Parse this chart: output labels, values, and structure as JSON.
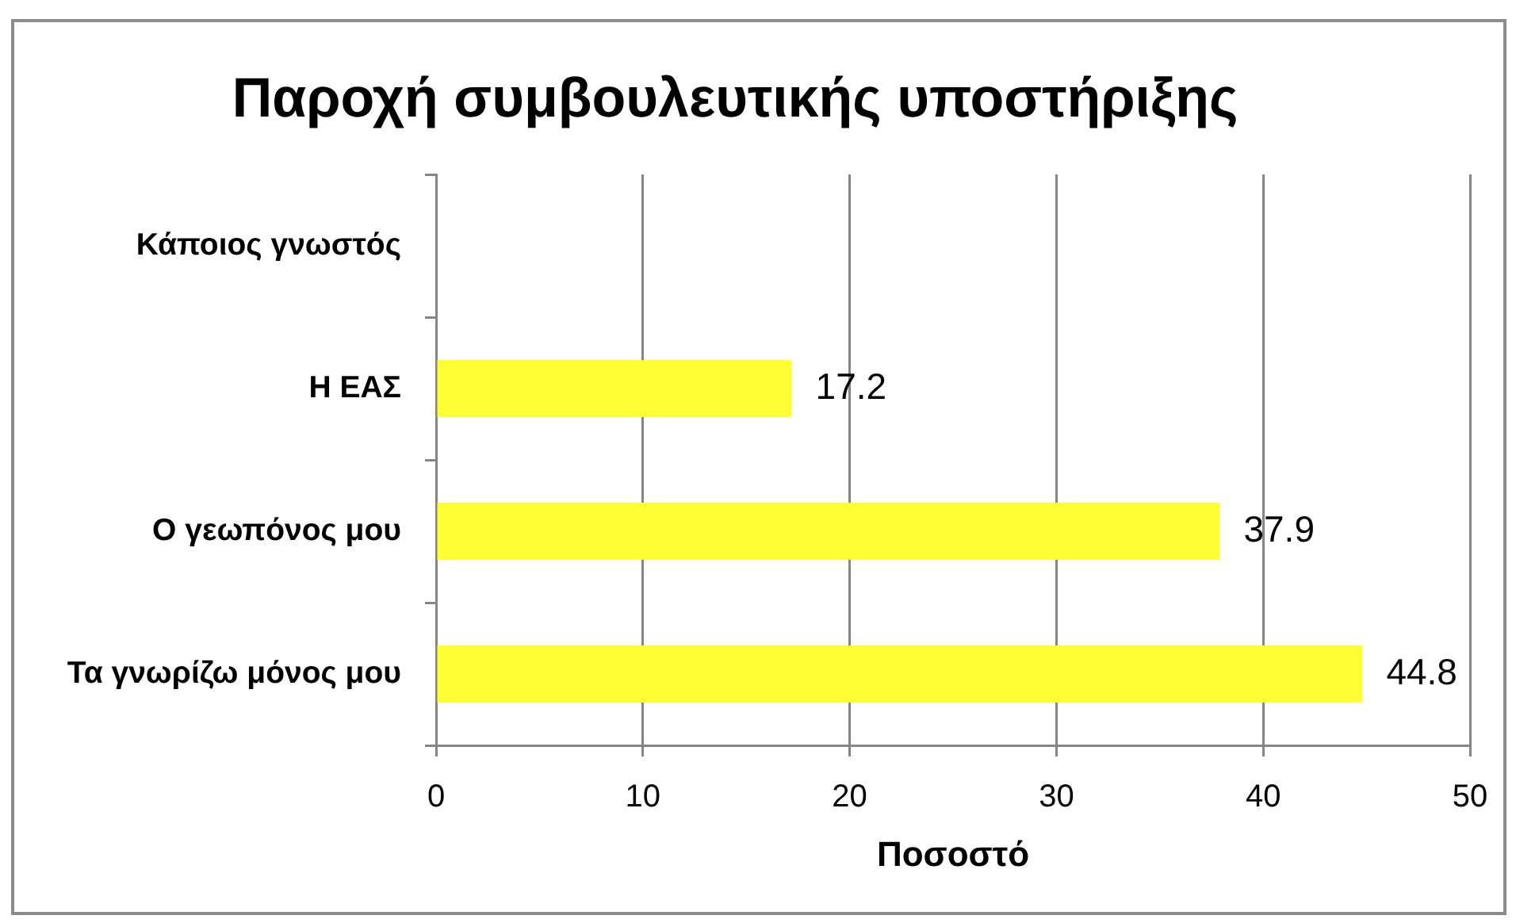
{
  "chart_data": {
    "type": "bar",
    "orientation": "horizontal",
    "title": "Παροχή συμβουλευτικής υποστήριξης",
    "xlabel": "Ποσοστό",
    "categories": [
      "Κάποιος γνωστός",
      "Η ΕΑΣ",
      "Ο γεωπόνος μου",
      "Τα γνωρίζω μόνος μου"
    ],
    "values": [
      null,
      17.2,
      37.9,
      44.8
    ],
    "color": "#ffff33",
    "xlim": [
      0,
      50
    ],
    "xticks": [
      0,
      10,
      20,
      30,
      40,
      50
    ],
    "grid": "x",
    "data_labels": true
  }
}
